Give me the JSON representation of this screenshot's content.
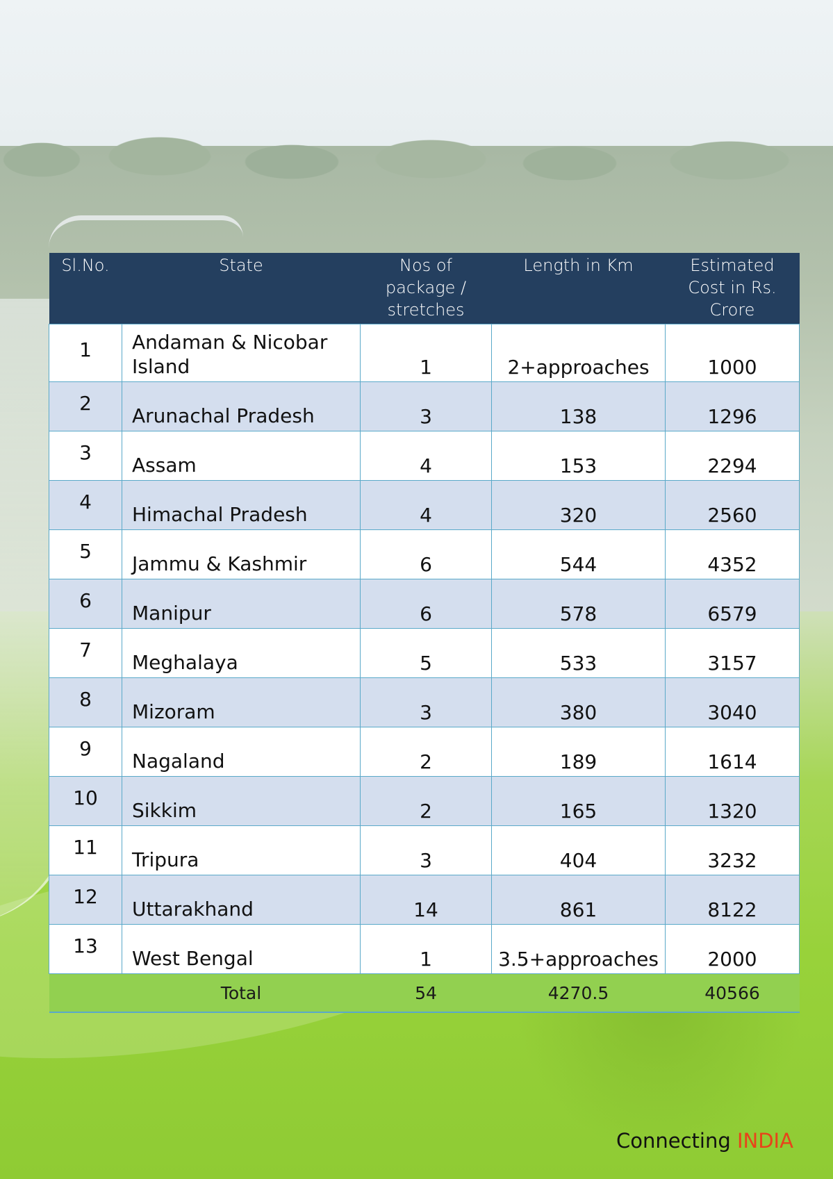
{
  "table": {
    "headers": [
      [
        "Sl.No."
      ],
      [
        "State"
      ],
      [
        "Nos of",
        "package /",
        "stretches"
      ],
      [
        "Length  in Km"
      ],
      [
        "Estimated",
        "Cost in Rs.",
        "Crore"
      ]
    ],
    "rows": [
      {
        "sl": "1",
        "state": [
          "Andaman & Nicobar",
          "Island"
        ],
        "packages": "1",
        "length": "2+approaches",
        "cost": "1000"
      },
      {
        "sl": "2",
        "state": [
          "Arunachal Pradesh"
        ],
        "packages": "3",
        "length": "138",
        "cost": "1296"
      },
      {
        "sl": "3",
        "state": [
          "Assam"
        ],
        "packages": "4",
        "length": "153",
        "cost": "2294"
      },
      {
        "sl": "4",
        "state": [
          "Himachal Pradesh"
        ],
        "packages": "4",
        "length": "320",
        "cost": "2560"
      },
      {
        "sl": "5",
        "state": [
          "Jammu & Kashmir"
        ],
        "packages": "6",
        "length": "544",
        "cost": "4352"
      },
      {
        "sl": "6",
        "state": [
          "Manipur"
        ],
        "packages": "6",
        "length": "578",
        "cost": "6579"
      },
      {
        "sl": "7",
        "state": [
          "Meghalaya"
        ],
        "packages": "5",
        "length": "533",
        "cost": "3157"
      },
      {
        "sl": "8",
        "state": [
          "Mizoram"
        ],
        "packages": "3",
        "length": "380",
        "cost": "3040"
      },
      {
        "sl": "9",
        "state": [
          "Nagaland"
        ],
        "packages": "2",
        "length": "189",
        "cost": "1614"
      },
      {
        "sl": "10",
        "state": [
          "Sikkim"
        ],
        "packages": "2",
        "length": "165",
        "cost": "1320"
      },
      {
        "sl": "11",
        "state": [
          "Tripura"
        ],
        "packages": "3",
        "length": "404",
        "cost": "3232"
      },
      {
        "sl": "12",
        "state": [
          "Uttarakhand"
        ],
        "packages": "14",
        "length": "861",
        "cost": "8122"
      },
      {
        "sl": "13",
        "state": [
          "West Bengal"
        ],
        "packages": "1",
        "length": "3.5+approaches",
        "cost": "2000"
      }
    ],
    "total": {
      "label": "Total",
      "packages": "54",
      "length": "4270.5",
      "cost": "40566"
    }
  },
  "footer": {
    "brand_prefix": "Connecting ",
    "brand_accent": "INDIA"
  },
  "colors": {
    "header_bg": "#243f5f",
    "band_row": "#d4deee",
    "total_bg": "#92d050",
    "grid_line": "#5aa9c9",
    "brand_accent": "#e8431a"
  }
}
